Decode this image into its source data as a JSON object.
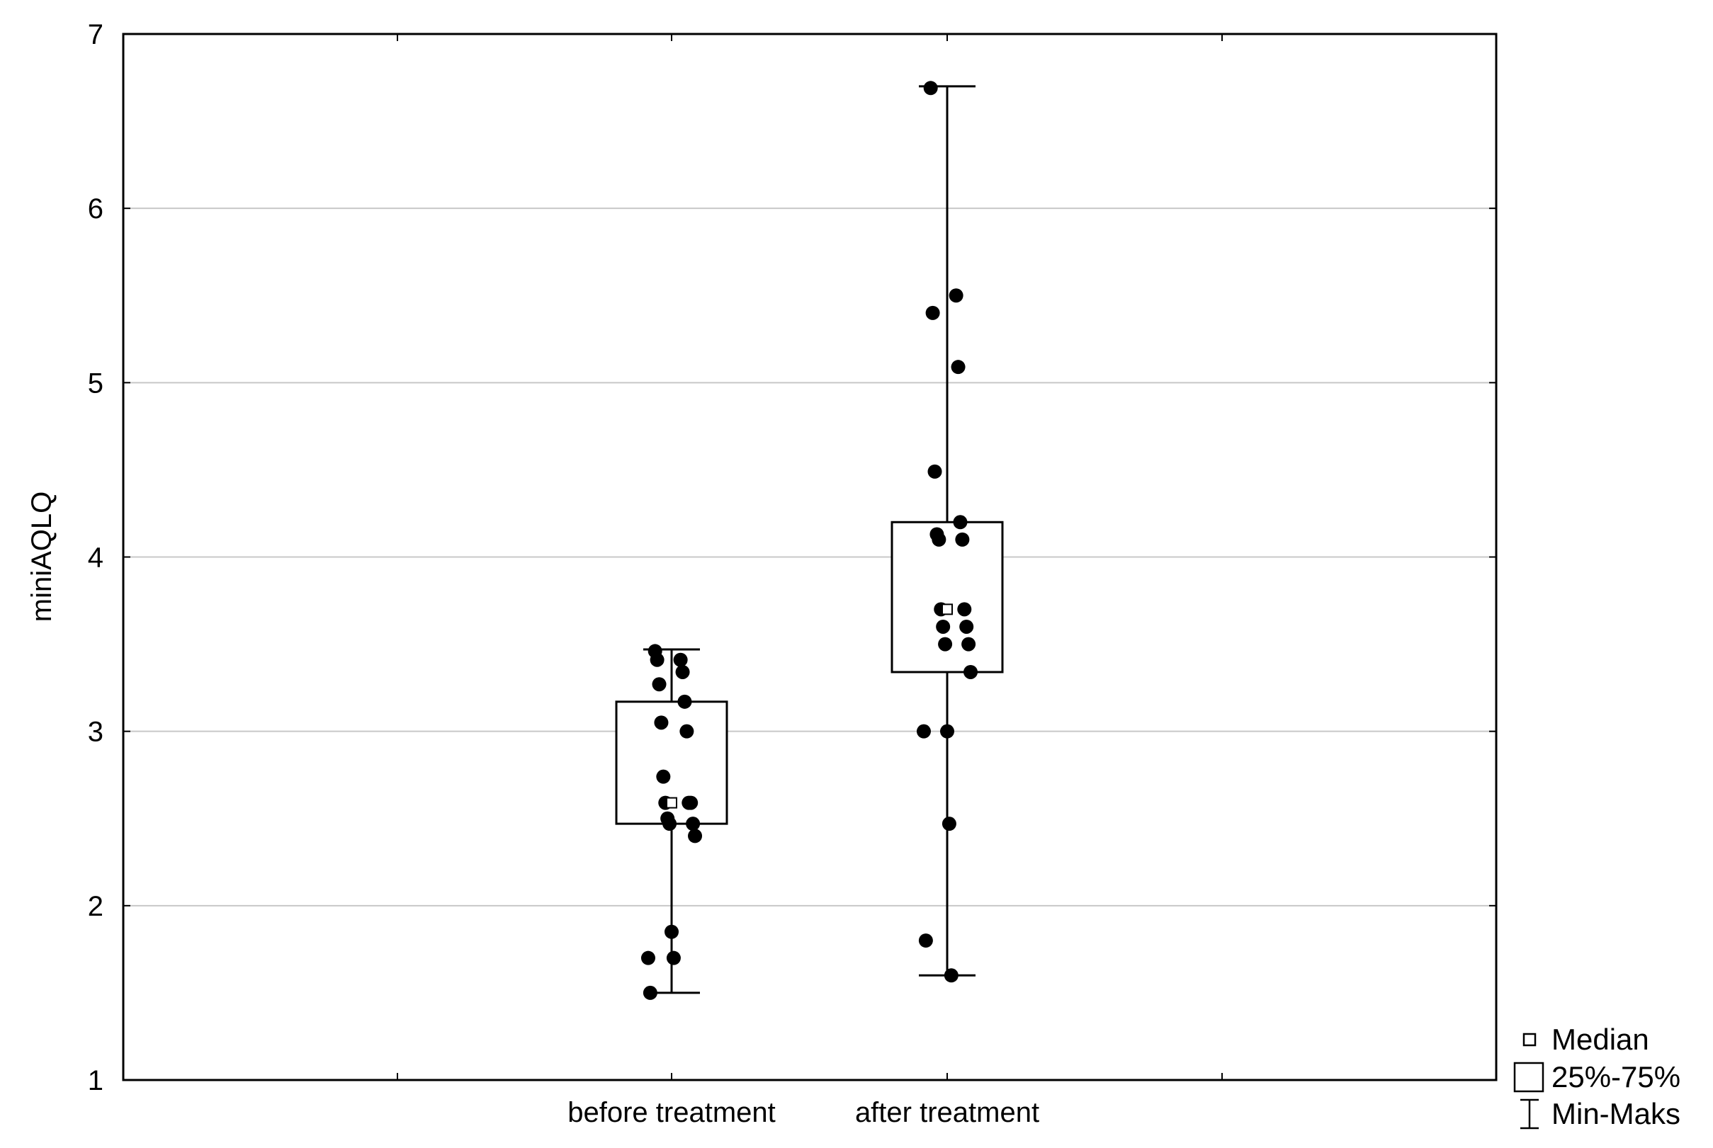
{
  "chart_data": {
    "type": "box",
    "title": "",
    "xlabel": "",
    "ylabel": "miniAQLQ",
    "ylim": [
      1,
      7
    ],
    "y_ticks": [
      1,
      2,
      3,
      4,
      5,
      6,
      7
    ],
    "grid": "horizontal",
    "legend_position": "bottom-right",
    "categories": [
      "before treatment",
      "after treatment"
    ],
    "boxes": [
      {
        "category": "before treatment",
        "min": 1.5,
        "q1": 2.47,
        "median": 2.59,
        "q3": 3.17,
        "max": 3.47,
        "points": [
          3.46,
          3.41,
          3.41,
          3.34,
          3.27,
          3.17,
          3.05,
          3.0,
          2.74,
          2.59,
          2.59,
          2.59,
          2.5,
          2.47,
          2.47,
          2.4,
          1.85,
          1.7,
          1.7,
          1.5
        ]
      },
      {
        "category": "after treatment",
        "min": 1.6,
        "q1": 3.34,
        "median": 3.7,
        "q3": 4.2,
        "max": 6.7,
        "points": [
          6.69,
          5.5,
          5.4,
          5.09,
          4.49,
          4.2,
          4.13,
          4.1,
          4.1,
          3.7,
          3.7,
          3.6,
          3.6,
          3.5,
          3.5,
          3.34,
          3.0,
          3.0,
          2.47,
          1.8,
          1.6
        ]
      }
    ],
    "legend": [
      {
        "symbol": "median",
        "label": "Median"
      },
      {
        "symbol": "box",
        "label": "25%-75%"
      },
      {
        "symbol": "whisker",
        "label": "Min-Maks"
      }
    ],
    "colors": {
      "points": "#000000",
      "box_stroke": "#000000",
      "box_fill": "#ffffff",
      "grid": "#c8c8c8",
      "frame": "#000000"
    }
  }
}
